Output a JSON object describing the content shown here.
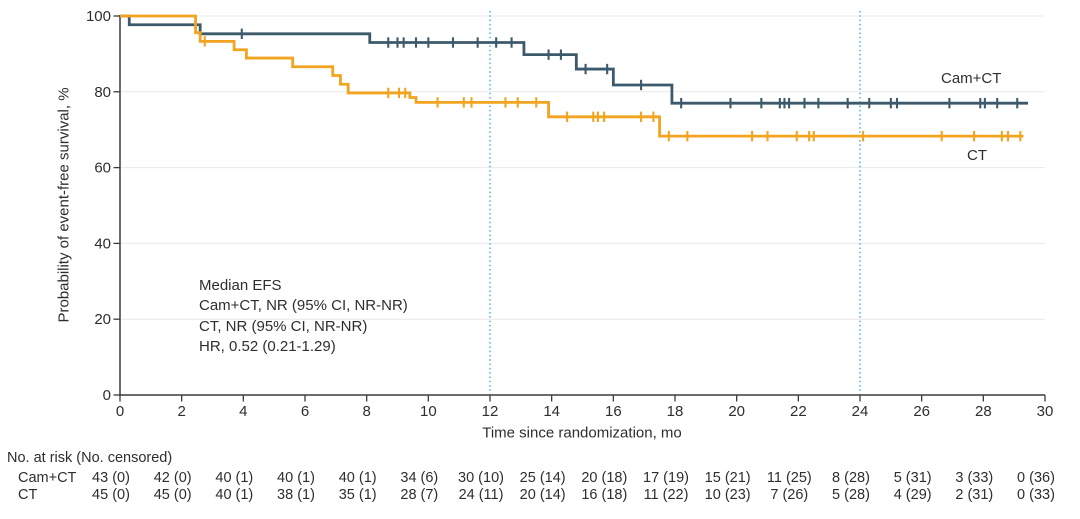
{
  "chart_data": {
    "type": "line",
    "subtype": "kaplan-meier-step",
    "title": "",
    "xlabel": "Time since randomization, mo",
    "ylabel": "Probability of event-free survival, %",
    "xlim": [
      0,
      30
    ],
    "ylim": [
      0,
      100
    ],
    "xticks": [
      0,
      2,
      4,
      6,
      8,
      10,
      12,
      14,
      16,
      18,
      20,
      22,
      24,
      26,
      28,
      30
    ],
    "yticks": [
      0,
      20,
      40,
      60,
      80,
      100
    ],
    "grid": "horizontal",
    "gridline_color": "#e8e8e8",
    "axis_color": "#3b3b3b",
    "text_color": "#2e2e2e",
    "reference_lines_x": [
      12,
      24
    ],
    "reference_line_color": "#49bee9",
    "annotation": {
      "lines": [
        "Median EFS",
        "Cam+CT, NR (95% CI, NR-NR)",
        "CT, NR (95% CI, NR-NR)",
        "HR, 0.52 (0.21-1.29)"
      ]
    },
    "series": [
      {
        "name": "Cam+CT",
        "color": "#3d5a6c",
        "end_x": 29.45,
        "steps": [
          [
            0,
            100
          ],
          [
            0.3,
            97.7
          ],
          [
            2.6,
            95.3
          ],
          [
            8.1,
            93.0
          ],
          [
            13.1,
            89.8
          ],
          [
            14.8,
            86.0
          ],
          [
            16.0,
            81.8
          ],
          [
            17.9,
            77.0
          ]
        ],
        "censors": [
          [
            3.95,
            95.3
          ],
          [
            8.7,
            93.0
          ],
          [
            9.0,
            93.0
          ],
          [
            9.2,
            93.0
          ],
          [
            9.6,
            93.0
          ],
          [
            10.0,
            93.0
          ],
          [
            10.8,
            93.0
          ],
          [
            11.6,
            93.0
          ],
          [
            12.2,
            93.0
          ],
          [
            12.7,
            93.0
          ],
          [
            13.9,
            89.8
          ],
          [
            14.3,
            89.8
          ],
          [
            15.1,
            86.0
          ],
          [
            15.8,
            86.0
          ],
          [
            16.9,
            81.8
          ],
          [
            18.2,
            77.0
          ],
          [
            19.8,
            77.0
          ],
          [
            20.8,
            77.0
          ],
          [
            21.4,
            77.0
          ],
          [
            21.55,
            77.0
          ],
          [
            21.7,
            77.0
          ],
          [
            22.2,
            77.0
          ],
          [
            22.65,
            77.0
          ],
          [
            23.6,
            77.0
          ],
          [
            24.3,
            77.0
          ],
          [
            25.0,
            77.0
          ],
          [
            25.2,
            77.0
          ],
          [
            26.9,
            77.0
          ],
          [
            27.9,
            77.0
          ],
          [
            28.05,
            77.0
          ],
          [
            28.45,
            77.0
          ],
          [
            29.1,
            77.0
          ]
        ]
      },
      {
        "name": "CT",
        "color": "#f2a41e",
        "end_x": 29.3,
        "steps": [
          [
            0,
            100
          ],
          [
            2.45,
            95.6
          ],
          [
            2.6,
            93.3
          ],
          [
            3.7,
            91.1
          ],
          [
            4.1,
            88.9
          ],
          [
            5.6,
            86.6
          ],
          [
            6.9,
            84.3
          ],
          [
            7.15,
            82.0
          ],
          [
            7.4,
            79.7
          ],
          [
            9.4,
            78.5
          ],
          [
            9.6,
            77.2
          ],
          [
            13.9,
            73.4
          ],
          [
            17.5,
            68.3
          ]
        ],
        "censors": [
          [
            2.75,
            93.3
          ],
          [
            8.7,
            79.7
          ],
          [
            9.05,
            79.7
          ],
          [
            9.25,
            79.7
          ],
          [
            10.3,
            77.2
          ],
          [
            11.15,
            77.2
          ],
          [
            11.4,
            77.2
          ],
          [
            12.5,
            77.2
          ],
          [
            12.9,
            77.2
          ],
          [
            13.5,
            77.2
          ],
          [
            14.5,
            73.4
          ],
          [
            15.35,
            73.4
          ],
          [
            15.5,
            73.4
          ],
          [
            15.7,
            73.4
          ],
          [
            16.9,
            73.4
          ],
          [
            17.3,
            73.4
          ],
          [
            17.8,
            68.3
          ],
          [
            18.4,
            68.3
          ],
          [
            20.5,
            68.3
          ],
          [
            21.0,
            68.3
          ],
          [
            21.95,
            68.3
          ],
          [
            22.35,
            68.3
          ],
          [
            22.5,
            68.3
          ],
          [
            24.1,
            68.3
          ],
          [
            26.65,
            68.3
          ],
          [
            27.7,
            68.3
          ],
          [
            28.6,
            68.3
          ],
          [
            28.8,
            68.3
          ],
          [
            29.2,
            68.3
          ]
        ]
      }
    ]
  },
  "risk_table": {
    "header": "No. at risk (No. censored)",
    "time_points": [
      0,
      2,
      4,
      6,
      8,
      10,
      12,
      14,
      16,
      18,
      20,
      22,
      24,
      26,
      28,
      30
    ],
    "rows": [
      {
        "label": "Cam+CT",
        "values": [
          "43 (0)",
          "42 (0)",
          "40 (1)",
          "40 (1)",
          "40 (1)",
          "34 (6)",
          "30 (10)",
          "25 (14)",
          "20 (18)",
          "17 (19)",
          "15 (21)",
          "11 (25)",
          "8 (28)",
          "5 (31)",
          "3 (33)",
          "0 (36)"
        ]
      },
      {
        "label": "CT",
        "values": [
          "45 (0)",
          "45 (0)",
          "40 (1)",
          "38 (1)",
          "35 (1)",
          "28 (7)",
          "24 (11)",
          "20 (14)",
          "16 (18)",
          "11 (22)",
          "10 (23)",
          "7 (26)",
          "5 (28)",
          "4 (29)",
          "2 (31)",
          "0 (33)"
        ]
      }
    ]
  }
}
